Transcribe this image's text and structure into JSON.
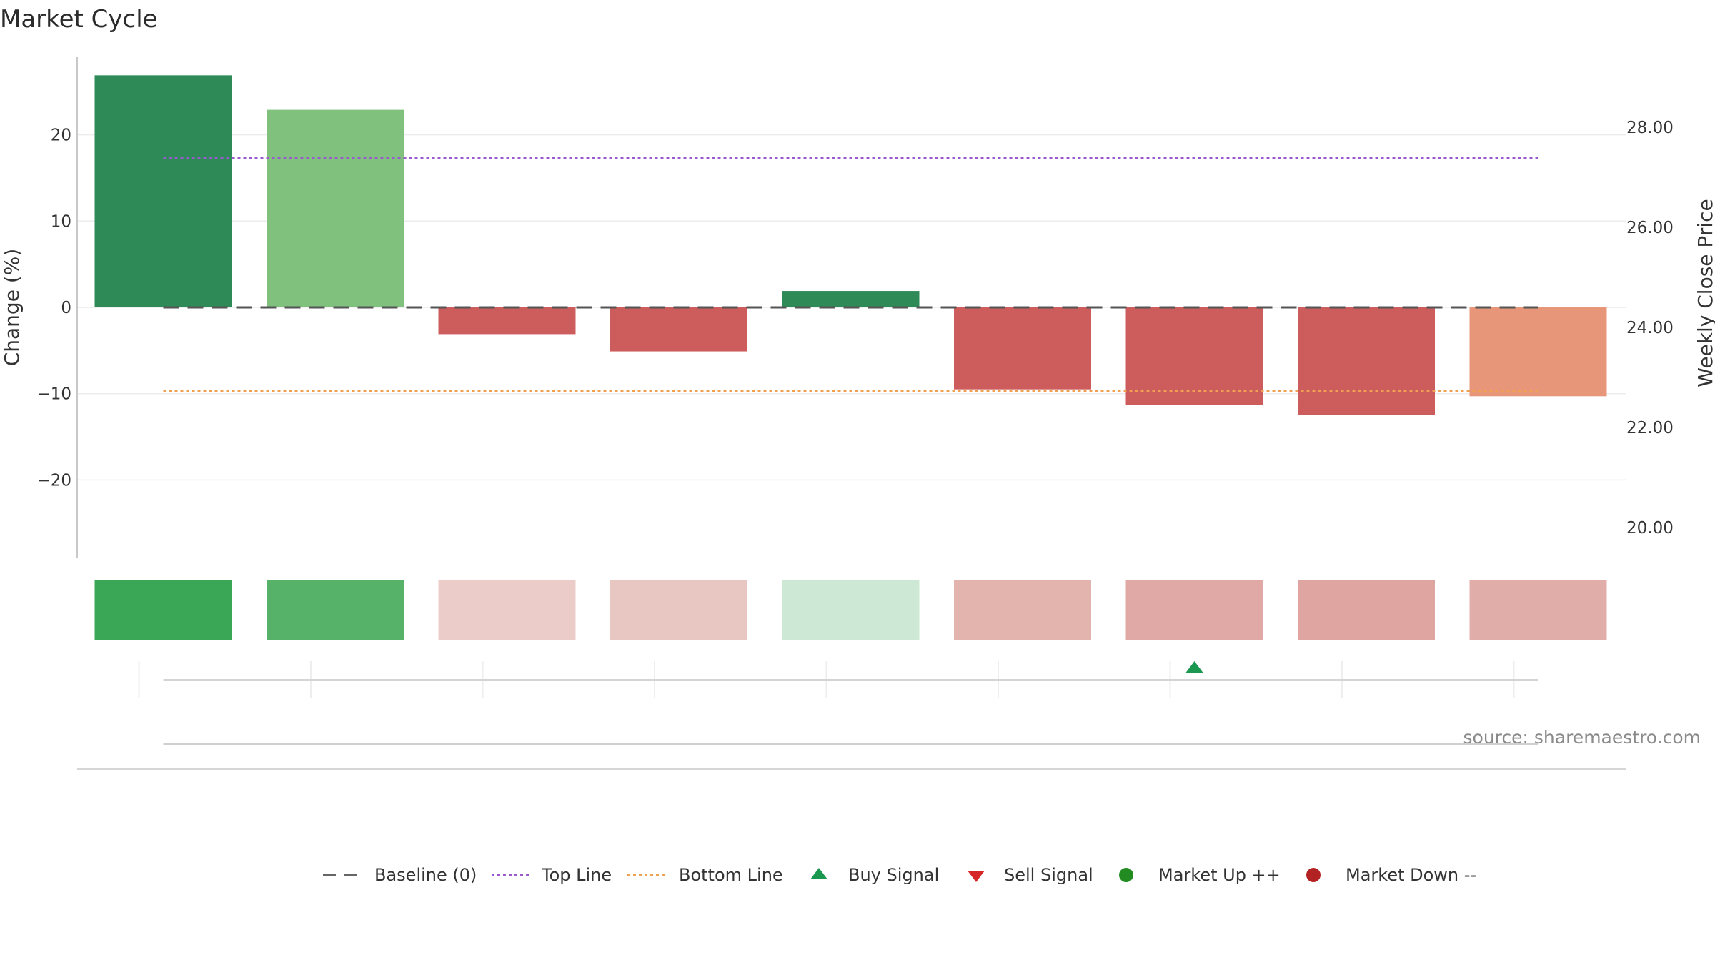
{
  "title": "Market Cycle",
  "source": "source: sharemaestro.com",
  "chart_data": {
    "type": "bar",
    "title": "Market Cycle",
    "ylabel_left": "Change (%)",
    "ylabel_right": "Weekly Close Price",
    "ylim_left": [
      -29,
      29
    ],
    "ylim_right": [
      19.4,
      29.4
    ],
    "yticks_left": [
      {
        "value": 20,
        "label": "20"
      },
      {
        "value": 10,
        "label": "10"
      },
      {
        "value": 0,
        "label": "0"
      },
      {
        "value": -10,
        "label": "−10"
      },
      {
        "value": -20,
        "label": "−20"
      }
    ],
    "yticks_right": [
      {
        "value": 28,
        "label": "28.00"
      },
      {
        "value": 26,
        "label": "26.00"
      },
      {
        "value": 24,
        "label": "24.00"
      },
      {
        "value": 22,
        "label": "22.00"
      },
      {
        "value": 20,
        "label": "20.00"
      }
    ],
    "grid": true,
    "values": [
      26.9,
      22.9,
      -3.1,
      -5.1,
      1.9,
      -9.5,
      -11.3,
      -12.5,
      -10.3
    ],
    "bar_colors": [
      "#2e8b57",
      "#80c17d",
      "#cd5c5c",
      "#cd5c5c",
      "#2e8b57",
      "#cd5c5c",
      "#cd5c5c",
      "#cd5c5c",
      "#e8967a"
    ],
    "heat_colors": [
      "#3aa757",
      "#55b268",
      "#ecccc8",
      "#e8c7c3",
      "#cde8d4",
      "#e3b3ae",
      "#e0a9a5",
      "#dfa5a0",
      "#e1ada8"
    ],
    "reference_lines": [
      {
        "name": "Baseline (0)",
        "value": 0,
        "color": "#555555",
        "style": "dashed"
      },
      {
        "name": "Top Line",
        "value": 17.3,
        "color": "#9b59d0",
        "style": "dotted"
      },
      {
        "name": "Bottom Line",
        "value": -9.7,
        "color": "#f0a050",
        "style": "dotted"
      }
    ],
    "signals": [
      {
        "type": "buy",
        "index": 6
      }
    ],
    "legend": {
      "placement": "bottom-center",
      "entries": [
        {
          "label": "Baseline (0)",
          "kind": "dashed",
          "color": "#666666"
        },
        {
          "label": "Top Line",
          "kind": "dotted",
          "color": "#9b59d0"
        },
        {
          "label": "Bottom Line",
          "kind": "dotted",
          "color": "#f0a050"
        },
        {
          "label": "Buy Signal",
          "kind": "triangle-up",
          "color": "#1a9850"
        },
        {
          "label": "Sell Signal",
          "kind": "triangle-down",
          "color": "#d62728"
        },
        {
          "label": "Market Up ++",
          "kind": "circle",
          "color": "#228b22"
        },
        {
          "label": "Market Down --",
          "kind": "circle",
          "color": "#b22222"
        }
      ]
    }
  }
}
